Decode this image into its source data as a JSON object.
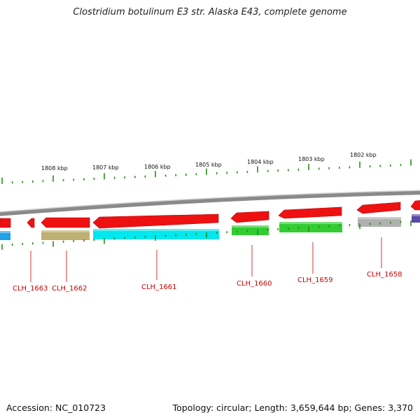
{
  "title": "Clostridium botulinum E3 str. Alaska E43, complete genome",
  "footer": {
    "accession": "Accession: NC_010723",
    "summary": "Topology: circular; Length: 3,659,644 bp; Genes: 3,370"
  },
  "colors": {
    "backbone": "#8a8a8a",
    "tick": "#2a8a18",
    "label": "#cc0000",
    "forward_gene": "#ee1111"
  },
  "kbp_labels": [
    "1808 kbp",
    "1807 kbp",
    "1806 kbp",
    "1805 kbp",
    "1804 kbp",
    "1803 kbp",
    "1802 kbp"
  ],
  "forward_genes": [
    {
      "id": "f1",
      "color": "#ee1111"
    },
    {
      "id": "f2",
      "color": "#ee1111"
    },
    {
      "id": "f3",
      "color": "#ee1111"
    },
    {
      "id": "f4",
      "color": "#ee1111"
    },
    {
      "id": "f5",
      "color": "#ee1111"
    },
    {
      "id": "f6",
      "color": "#ee1111"
    },
    {
      "id": "f7",
      "color": "#ee1111"
    },
    {
      "id": "f8",
      "color": "#ee1111"
    }
  ],
  "cog_bars": [
    {
      "id": "c0",
      "color": "#22a0e8"
    },
    {
      "id": "c1",
      "color": "#bdb070"
    },
    {
      "id": "c2",
      "color": "#00e8ee"
    },
    {
      "id": "c3",
      "color": "#33cc33"
    },
    {
      "id": "c4",
      "color": "#33cc33"
    },
    {
      "id": "c5",
      "color": "#b0b0b0"
    },
    {
      "id": "c6",
      "color": "#5a4aa8"
    }
  ],
  "gene_labels": [
    "CLH_1663",
    "CLH_1662",
    "CLH_1661",
    "CLH_1660",
    "CLH_1659",
    "CLH_1658"
  ]
}
